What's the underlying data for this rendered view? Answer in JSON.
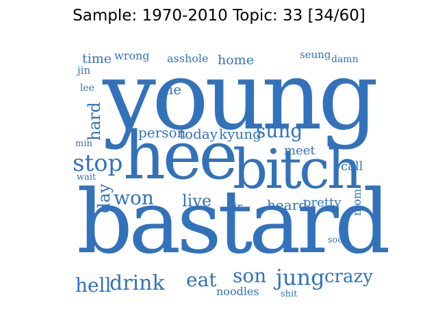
{
  "title": "Sample: 1970-2010 Topic: 33 [34/60]",
  "word_color": "#3272bb",
  "words": [
    {
      "text": "young"
    },
    {
      "text": "bastard"
    },
    {
      "text": "hee"
    },
    {
      "text": "bitch"
    },
    {
      "text": "jung"
    },
    {
      "text": "stop"
    },
    {
      "text": "drink"
    },
    {
      "text": "hell"
    },
    {
      "text": "son"
    },
    {
      "text": "eat"
    },
    {
      "text": "won"
    },
    {
      "text": "crazy"
    },
    {
      "text": "sung"
    },
    {
      "text": "live"
    },
    {
      "text": "hard"
    },
    {
      "text": "day"
    },
    {
      "text": "heard"
    },
    {
      "text": "person"
    },
    {
      "text": "today"
    },
    {
      "text": "kyung"
    },
    {
      "text": "pretty"
    },
    {
      "text": "time"
    },
    {
      "text": "home"
    },
    {
      "text": "call"
    },
    {
      "text": "meet"
    },
    {
      "text": "die"
    },
    {
      "text": "wrong"
    },
    {
      "text": "asshole"
    },
    {
      "text": "noodles"
    },
    {
      "text": "sir"
    },
    {
      "text": "mom"
    },
    {
      "text": "seung"
    },
    {
      "text": "damn"
    },
    {
      "text": "jin"
    },
    {
      "text": "lee"
    },
    {
      "text": "min"
    },
    {
      "text": "wait"
    },
    {
      "text": "soo"
    },
    {
      "text": "shit"
    }
  ]
}
